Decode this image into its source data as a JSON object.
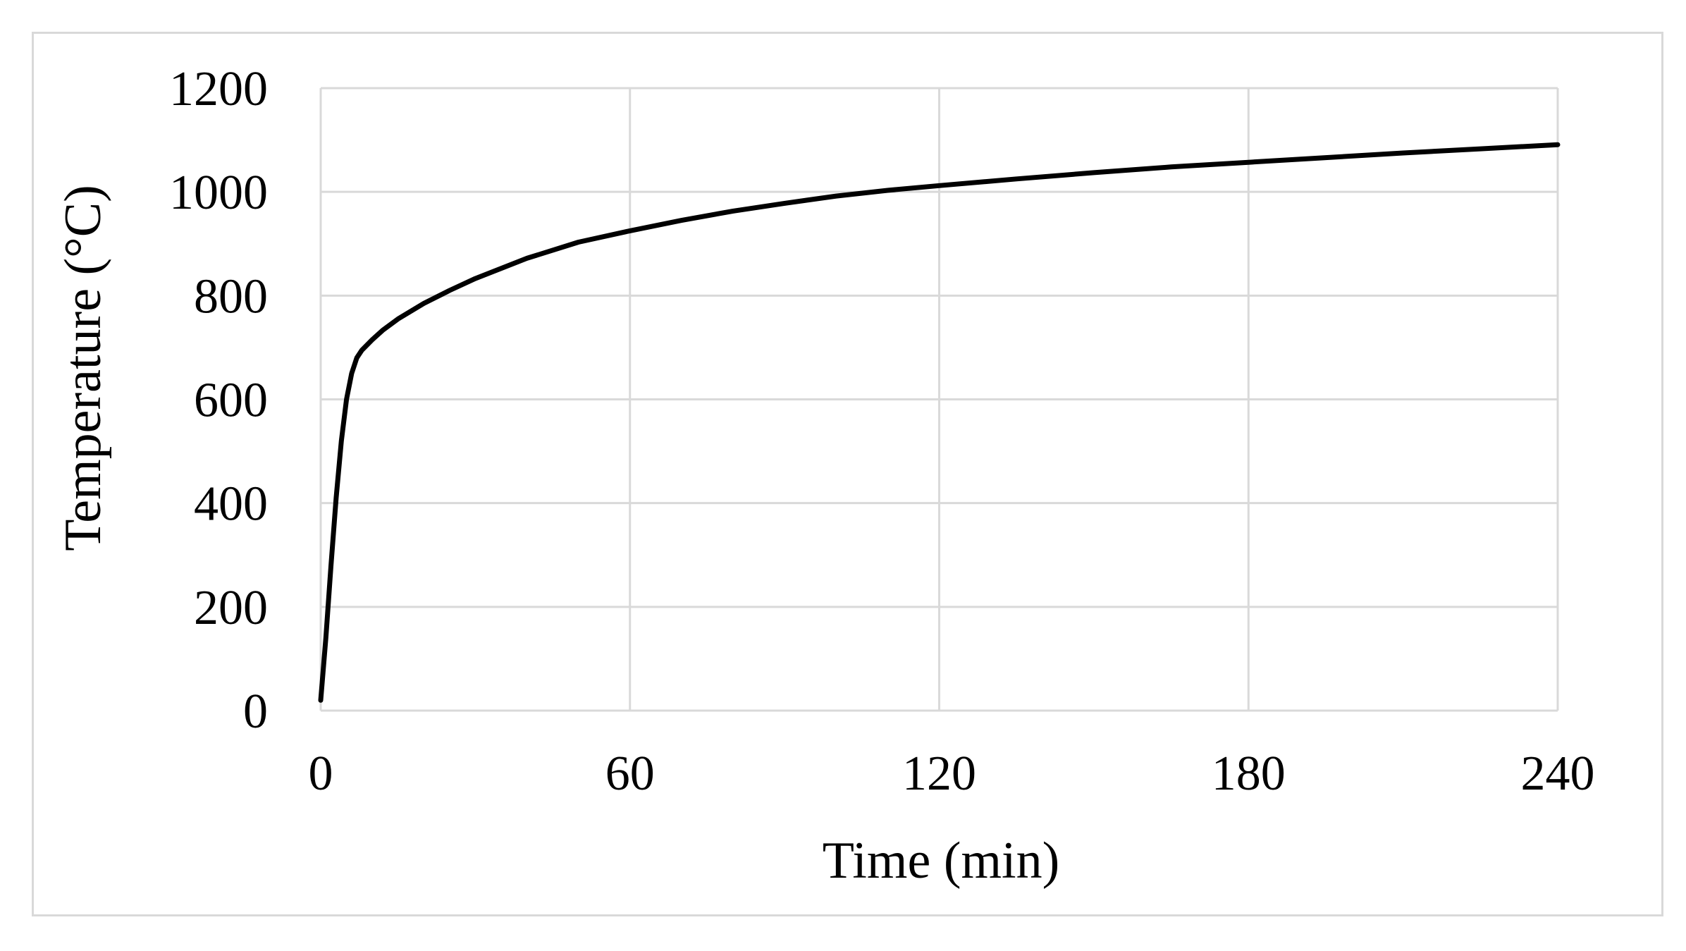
{
  "chart_data": {
    "type": "line",
    "title": "",
    "xlabel": "Time (min)",
    "ylabel": "Temperature (°C)",
    "xlim": [
      0,
      240
    ],
    "ylim": [
      0,
      1200
    ],
    "x_ticks": [
      0,
      60,
      120,
      180,
      240
    ],
    "y_ticks": [
      0,
      200,
      400,
      600,
      800,
      1000,
      1200
    ],
    "x_tick_labels": [
      "0",
      "60",
      "120",
      "180",
      "240"
    ],
    "y_tick_labels": [
      "0",
      "200",
      "400",
      "600",
      "800",
      "1000",
      "1200"
    ],
    "grid": true,
    "legend": "none",
    "line_color": "#000000",
    "grid_color": "#d9d9d9",
    "series": [
      {
        "x": [
          0,
          1,
          2,
          3,
          4,
          5,
          6,
          7,
          8,
          10,
          12,
          15,
          20,
          25,
          30,
          40,
          50,
          60,
          70,
          80,
          90,
          100,
          110,
          120,
          135,
          150,
          165,
          180,
          195,
          210,
          225,
          240
        ],
        "y": [
          20,
          140,
          280,
          410,
          520,
          600,
          650,
          680,
          695,
          715,
          733,
          755,
          785,
          810,
          833,
          872,
          903,
          925,
          945,
          963,
          978,
          992,
          1003,
          1012,
          1025,
          1037,
          1048,
          1057,
          1066,
          1075,
          1083,
          1091
        ]
      }
    ]
  }
}
